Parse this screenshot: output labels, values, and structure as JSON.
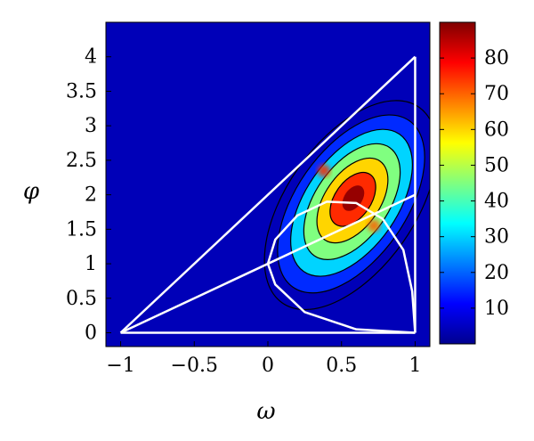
{
  "chart_data": {
    "type": "heatmap",
    "xlabel": "ω",
    "ylabel": "φ",
    "xlim": [
      -1.1,
      1.1
    ],
    "ylim": [
      -0.2,
      4.5
    ],
    "xticks": [
      -1,
      -0.5,
      0,
      0.5,
      1
    ],
    "xtick_labels": [
      "−1",
      "−0.5",
      "0",
      "0.5",
      "1"
    ],
    "yticks": [
      0,
      0.5,
      1,
      1.5,
      2,
      2.5,
      3,
      3.5,
      4
    ],
    "ytick_labels": [
      "0",
      "0.5",
      "1",
      "1.5",
      "2",
      "2.5",
      "3",
      "3.5",
      "4"
    ],
    "colorbar": {
      "colormap": "jet",
      "range": [
        0,
        90
      ],
      "ticks": [
        10,
        20,
        30,
        40,
        50,
        60,
        70,
        80
      ],
      "tick_labels": [
        "10",
        "20",
        "30",
        "40",
        "50",
        "60",
        "70",
        "80"
      ]
    },
    "density_peak": {
      "x": 0.58,
      "y": 1.95,
      "value": 88
    },
    "density_ridge": [
      {
        "x": 0.38,
        "y": 2.35,
        "value": 75
      },
      {
        "x": 0.58,
        "y": 1.95,
        "value": 88
      },
      {
        "x": 0.72,
        "y": 1.55,
        "value": 70
      }
    ],
    "contour_levels": [
      5,
      15,
      30,
      45,
      60,
      75
    ],
    "overlay_lines": [
      {
        "name": "line-left-upper",
        "points": [
          [
            -1,
            0
          ],
          [
            1,
            4
          ]
        ]
      },
      {
        "name": "line-left-lower",
        "points": [
          [
            -1,
            0
          ],
          [
            1,
            2
          ]
        ]
      },
      {
        "name": "line-bottom",
        "points": [
          [
            -1,
            0
          ],
          [
            1,
            0
          ]
        ]
      },
      {
        "name": "line-right",
        "points": [
          [
            1,
            0
          ],
          [
            1,
            4
          ]
        ]
      }
    ],
    "overlay_curve": {
      "name": "boundary-curve",
      "points": [
        [
          1,
          0
        ],
        [
          0.6,
          0.05
        ],
        [
          0.25,
          0.3
        ],
        [
          0.05,
          0.7
        ],
        [
          0,
          1
        ],
        [
          0.05,
          1.35
        ],
        [
          0.2,
          1.7
        ],
        [
          0.4,
          1.9
        ],
        [
          0.6,
          1.88
        ],
        [
          0.78,
          1.65
        ],
        [
          0.92,
          1.2
        ],
        [
          0.98,
          0.6
        ],
        [
          1,
          0
        ]
      ]
    }
  }
}
